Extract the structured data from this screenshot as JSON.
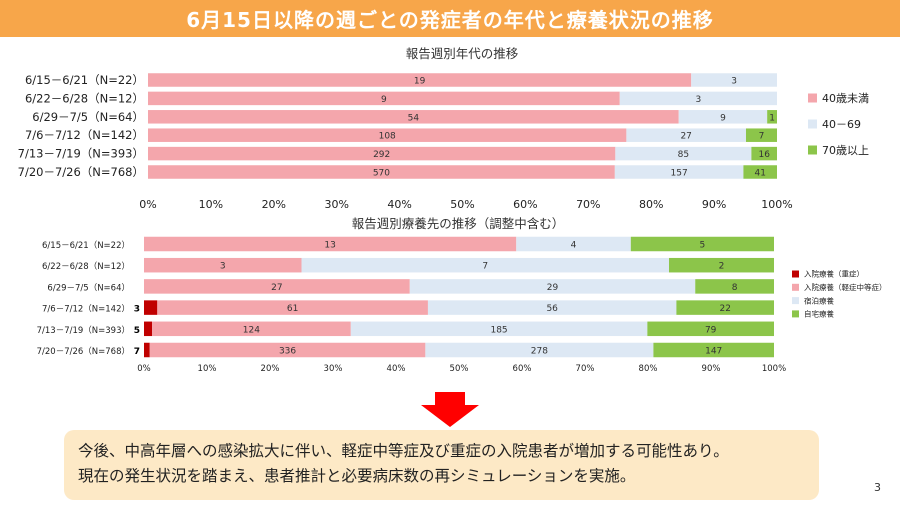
{
  "header": {
    "title": "6月15日以降の週ごとの発症者の年代と療養状況の推移"
  },
  "colors": {
    "header_bg": "#f7a64a",
    "under40": "#f4a6ac",
    "age40_69": "#dde8f4",
    "over70": "#8cc54a",
    "hosp_severe": "#c00000",
    "hosp_mild": "#f4a6ac",
    "lodging": "#dde8f4",
    "home": "#8cc54a",
    "arrow": "#ff0000",
    "summary_bg": "#fde9c6"
  },
  "chart_data": [
    {
      "type": "bar",
      "orientation": "horizontal",
      "stacked": "percent",
      "title": "報告週別年代の推移",
      "categories": [
        "6/15－6/21（N=22）",
        "6/22－6/28（N=12）",
        "6/29－7/5（N=64）",
        "7/6－7/12（N=142）",
        "7/13－7/19（N=393）",
        "7/20－7/26（N=768）"
      ],
      "series": [
        {
          "name": "40歳未満",
          "values": [
            19,
            9,
            54,
            108,
            292,
            570
          ],
          "color": "#f4a6ac"
        },
        {
          "name": "40－69",
          "values": [
            3,
            3,
            9,
            27,
            85,
            157
          ],
          "color": "#dde8f4"
        },
        {
          "name": "70歳以上",
          "values": [
            0,
            0,
            1,
            7,
            16,
            41
          ],
          "color": "#8cc54a"
        }
      ],
      "xticks": [
        "0%",
        "10%",
        "20%",
        "30%",
        "40%",
        "50%",
        "60%",
        "70%",
        "80%",
        "90%",
        "100%"
      ],
      "xlim": [
        0,
        100
      ],
      "legend": "right",
      "grid": false
    },
    {
      "type": "bar",
      "orientation": "horizontal",
      "stacked": "percent",
      "title": "報告週別療養先の推移（調整中含む）",
      "categories": [
        "6/15－6/21（N=22）",
        "6/22－6/28（N=12）",
        "6/29－7/5（N=64）",
        "7/6－7/12（N=142）",
        "7/13－7/19（N=393）",
        "7/20－7/26（N=768）"
      ],
      "series": [
        {
          "name": "入院療養（重症）",
          "values": [
            0,
            0,
            0,
            3,
            5,
            7
          ],
          "color": "#c00000"
        },
        {
          "name": "入院療養（軽症中等症）",
          "values": [
            13,
            3,
            27,
            61,
            124,
            336
          ],
          "color": "#f4a6ac"
        },
        {
          "name": "宿泊療養",
          "values": [
            4,
            7,
            29,
            56,
            185,
            278
          ],
          "color": "#dde8f4"
        },
        {
          "name": "自宅療養",
          "values": [
            5,
            2,
            8,
            22,
            79,
            147
          ],
          "color": "#8cc54a"
        }
      ],
      "xticks": [
        "0%",
        "10%",
        "20%",
        "30%",
        "40%",
        "50%",
        "60%",
        "70%",
        "80%",
        "90%",
        "100%"
      ],
      "xlim": [
        0,
        100
      ],
      "legend": "right",
      "grid": false
    }
  ],
  "summary": {
    "line1": "今後、中高年層への感染拡大に伴い、軽症中等症及び重症の入院患者が増加する可能性あり。",
    "line2": "現在の発生状況を踏まえ、患者推計と必要病床数の再シミュレーションを実施。"
  },
  "page_number": "3"
}
